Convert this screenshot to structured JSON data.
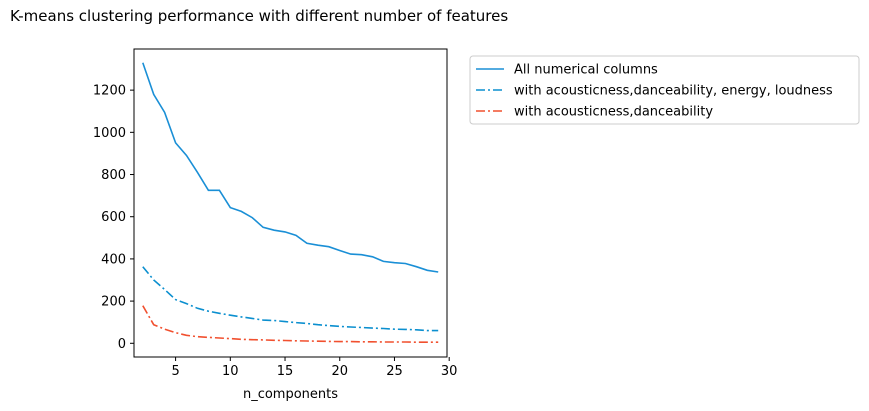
{
  "chart_data": {
    "type": "line",
    "title": "K-means clustering performance with different number of features",
    "xlabel": "n_components",
    "ylabel": "",
    "xlim": [
      1.2,
      29.8
    ],
    "ylim": [
      -65,
      1395
    ],
    "xticks": [
      5,
      10,
      15,
      20,
      25,
      30
    ],
    "yticks": [
      0,
      200,
      400,
      600,
      800,
      1000,
      1200
    ],
    "grid": false,
    "legend_position": "outside-upper-right",
    "x": [
      2,
      3,
      4,
      5,
      6,
      7,
      8,
      9,
      10,
      11,
      12,
      13,
      14,
      15,
      16,
      17,
      18,
      19,
      20,
      21,
      22,
      23,
      24,
      25,
      26,
      27,
      28,
      29
    ],
    "series": [
      {
        "name": "All numerical columns",
        "color": "#1a8fd6",
        "linestyle": "solid",
        "values": [
          1330,
          1180,
          1095,
          950,
          890,
          810,
          725,
          725,
          643,
          625,
          596,
          550,
          536,
          528,
          512,
          474,
          465,
          458,
          440,
          423,
          420,
          410,
          388,
          382,
          378,
          363,
          346,
          338
        ]
      },
      {
        "name": "with acousticness,danceability, energy, loudness",
        "color": "#0b8fcf",
        "linestyle": "dashdot",
        "values": [
          363,
          300,
          255,
          207,
          188,
          166,
          152,
          142,
          133,
          125,
          118,
          110,
          108,
          103,
          98,
          94,
          88,
          84,
          80,
          77,
          75,
          72,
          70,
          67,
          66,
          64,
          60,
          60
        ]
      },
      {
        "name": "with acousticness,danceability",
        "color": "#f1502f",
        "linestyle": "dashdot",
        "values": [
          178,
          88,
          67,
          50,
          38,
          31,
          28,
          25,
          22,
          19,
          17,
          16,
          14,
          13,
          12,
          11,
          10,
          9,
          8,
          8,
          7,
          7,
          6,
          6,
          6,
          5,
          5,
          5
        ]
      }
    ]
  }
}
